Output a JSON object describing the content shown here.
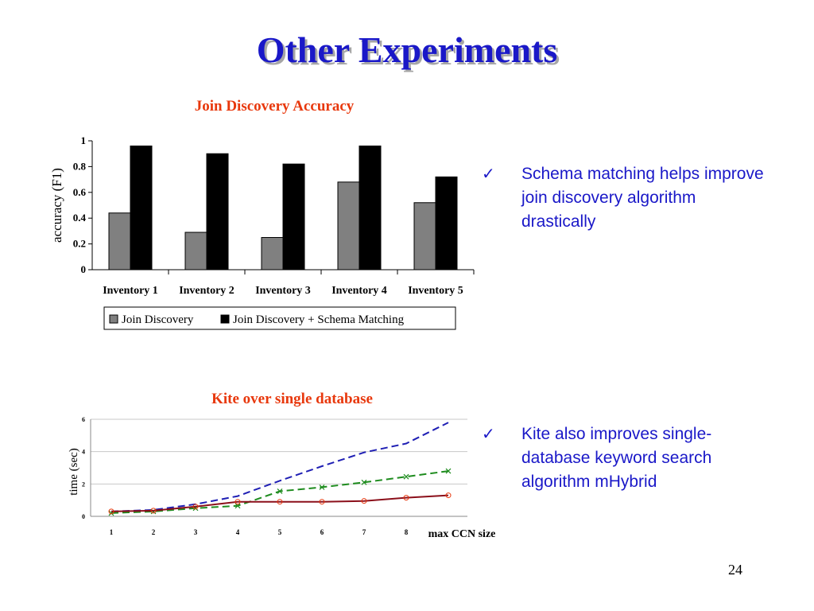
{
  "slide": {
    "title": "Other Experiments",
    "page_number": "24"
  },
  "bullets": [
    {
      "icon": "check-mark-icon",
      "text": "Schema matching helps improve join discovery algorithm drastically"
    },
    {
      "icon": "check-mark-icon",
      "text": "Kite also improves single-database keyword search algorithm mHybrid"
    }
  ],
  "colors": {
    "title": "#1a18c8",
    "chart_title": "#e8380d",
    "bullet_text": "#1a18c8",
    "bar_join_discovery": "#808080",
    "bar_schema_matching": "#000000",
    "line_blue": "#1f1fb4",
    "line_green": "#1e8c1e",
    "line_red": "#8b0f1a"
  },
  "chart_data": [
    {
      "type": "bar",
      "title": "Join Discovery Accuracy",
      "xlabel": "",
      "ylabel": "accuracy (F1)",
      "categories": [
        "Inventory 1",
        "Inventory 2",
        "Inventory 3",
        "Inventory 4",
        "Inventory 5"
      ],
      "ylim": [
        0,
        1
      ],
      "yticks": [
        "0",
        "0.2",
        "0.4",
        "0.6",
        "0.8",
        "1"
      ],
      "series": [
        {
          "name": "Join Discovery",
          "color": "#808080",
          "values": [
            0.44,
            0.29,
            0.25,
            0.68,
            0.52
          ]
        },
        {
          "name": "Join Discovery + Schema Matching",
          "color": "#000000",
          "values": [
            0.96,
            0.9,
            0.82,
            0.96,
            0.72
          ]
        }
      ],
      "legend": "bottom",
      "grid": false
    },
    {
      "type": "line",
      "title": "Kite over single database",
      "xlabel": "max CCN size",
      "ylabel": "time (sec)",
      "x": [
        1,
        2,
        3,
        4,
        5,
        6,
        7,
        8,
        9
      ],
      "xticks": [
        "1",
        "2",
        "3",
        "4",
        "5",
        "6",
        "7",
        "8"
      ],
      "ylim": [
        0,
        6
      ],
      "yticks": [
        "0",
        "2",
        "4",
        "6"
      ],
      "series": [
        {
          "color": "#1f1fb4",
          "dash": "dashed",
          "marker": "none",
          "values": [
            0.3,
            0.4,
            0.75,
            1.25,
            2.2,
            3.1,
            3.95,
            4.5,
            5.8
          ]
        },
        {
          "color": "#1e8c1e",
          "dash": "dashed",
          "marker": "x",
          "values": [
            0.2,
            0.3,
            0.5,
            0.65,
            1.55,
            1.8,
            2.1,
            2.45,
            2.8
          ]
        },
        {
          "color": "#8b0f1a",
          "dash": "solid",
          "marker": "circle",
          "values": [
            0.3,
            0.35,
            0.6,
            0.9,
            0.9,
            0.9,
            0.95,
            1.15,
            1.3
          ]
        }
      ],
      "legend": "none",
      "grid": true
    }
  ]
}
